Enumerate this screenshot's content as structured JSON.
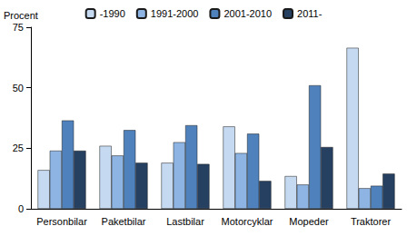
{
  "chart_data": {
    "type": "bar",
    "y_label": "Procent",
    "categories": [
      "Personbilar",
      "Paketbilar",
      "Lastbilar",
      "Motorcyklar",
      "Mopeder",
      "Traktorer"
    ],
    "series": [
      {
        "name": "-1990",
        "color": "#c5d9f1",
        "values": [
          16,
          26,
          19,
          34,
          13.5,
          66.5
        ]
      },
      {
        "name": "1991-2000",
        "color": "#8db4e2",
        "values": [
          24,
          22,
          27.5,
          23,
          10,
          8.5
        ]
      },
      {
        "name": "2001-2010",
        "color": "#4f81bd",
        "values": [
          36.5,
          32.5,
          34.5,
          31,
          51,
          9.5
        ]
      },
      {
        "name": "2011-",
        "color": "#254061",
        "values": [
          24,
          19,
          18.5,
          11.5,
          25.5,
          14.5
        ]
      }
    ],
    "ylim": [
      0,
      75
    ],
    "yticks": [
      0,
      25,
      50,
      75
    ],
    "grid": false,
    "legend": "top"
  }
}
